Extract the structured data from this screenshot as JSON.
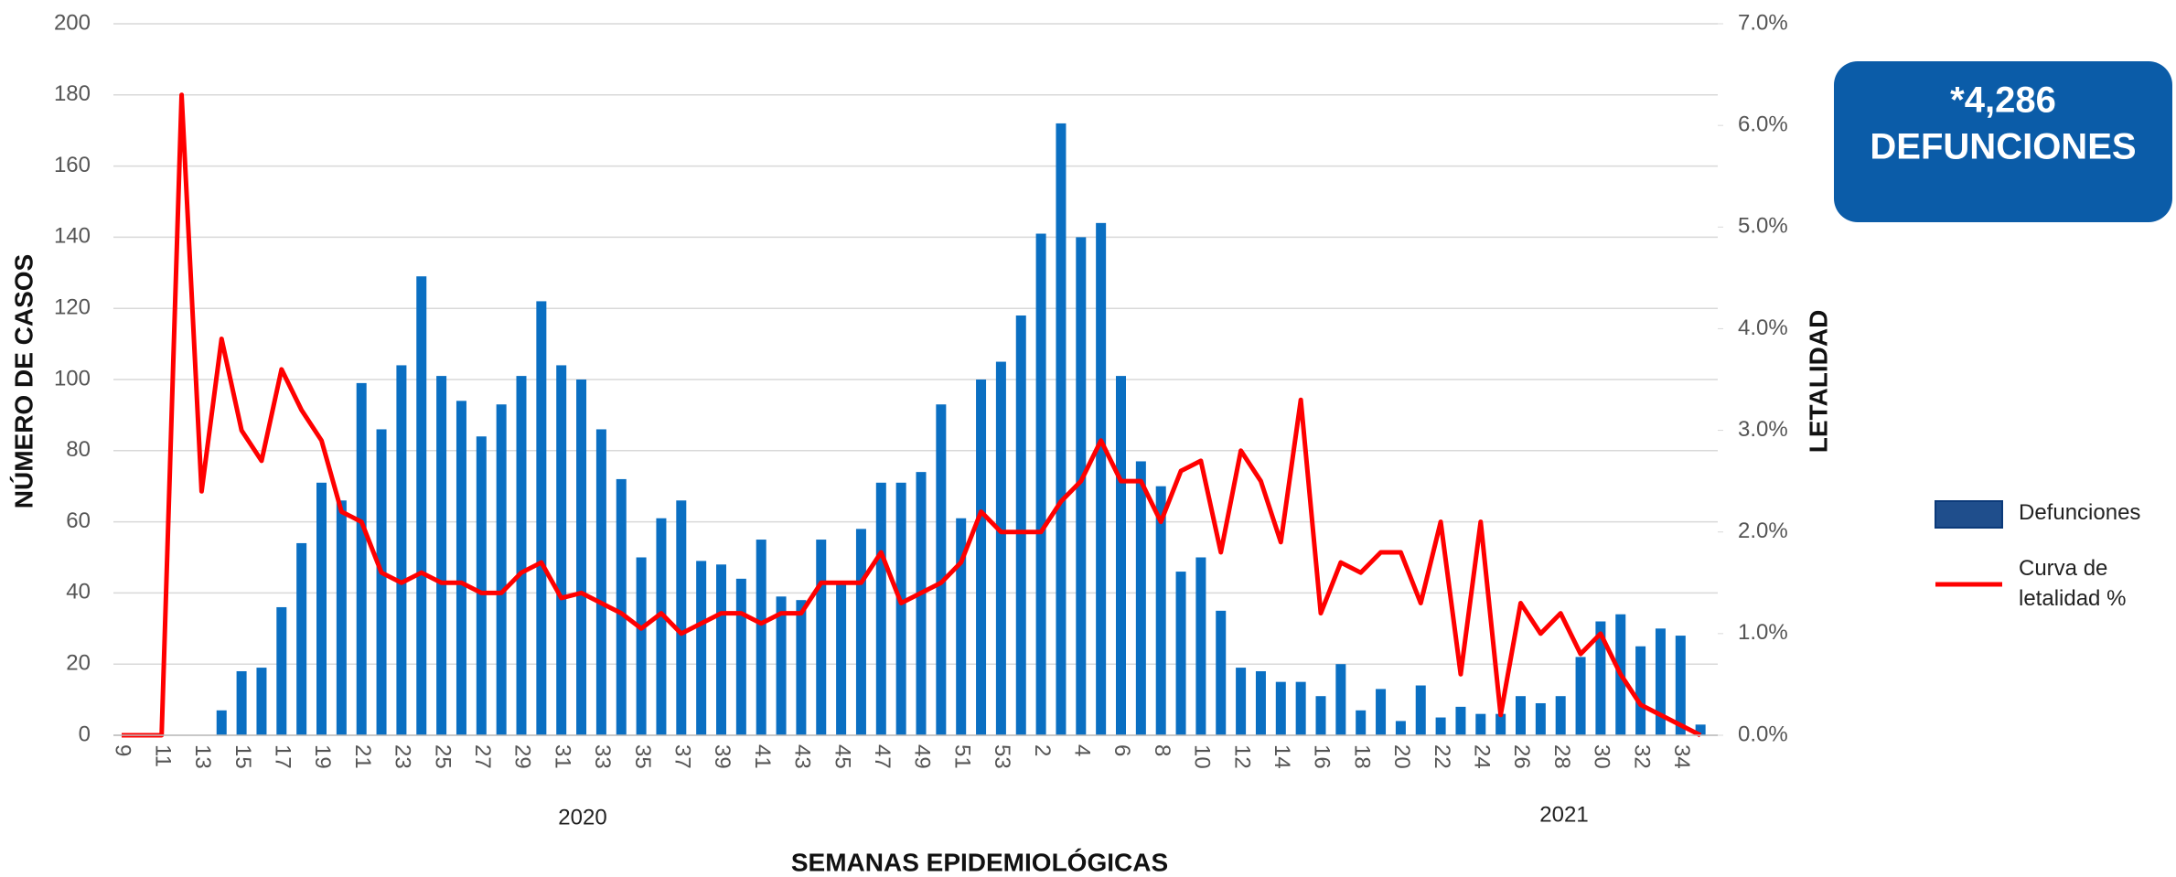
{
  "chart_data": {
    "type": "bar",
    "xlabel": "SEMANAS EPIDEMIOLÓGICAS",
    "ylabel": "NÚMERO DE CASOS",
    "y2label": "LETALIDAD",
    "annotations": [
      "2020",
      "2021"
    ],
    "badge": {
      "count": "*4,286",
      "label": "DEFUNCIONES"
    },
    "categories": [
      "9",
      null,
      "11",
      null,
      "13",
      null,
      "15",
      null,
      "17",
      null,
      "19",
      null,
      "21",
      null,
      "23",
      null,
      "25",
      null,
      "27",
      null,
      "29",
      null,
      "31",
      null,
      "33",
      null,
      "35",
      null,
      "37",
      null,
      "39",
      null,
      "41",
      null,
      "43",
      null,
      "45",
      null,
      "47",
      null,
      "49",
      null,
      "51",
      null,
      "53",
      null,
      "2",
      null,
      "4",
      null,
      "6",
      null,
      "8",
      null,
      "10",
      null,
      "12",
      null,
      "14",
      null,
      "16",
      null,
      "18",
      null,
      "20",
      null,
      "22",
      null,
      "24",
      null,
      "26",
      null,
      "28",
      null,
      "30",
      null,
      "32",
      null,
      "34",
      null
    ],
    "series": [
      {
        "name": "Defunciones",
        "color": "#0a6fc2",
        "values": [
          0,
          0,
          0,
          0,
          0,
          7,
          18,
          19,
          36,
          54,
          71,
          66,
          99,
          86,
          104,
          129,
          101,
          94,
          84,
          93,
          101,
          122,
          104,
          100,
          86,
          72,
          50,
          61,
          66,
          49,
          48,
          44,
          55,
          39,
          38,
          55,
          43,
          58,
          71,
          71,
          74,
          93,
          61,
          100,
          105,
          118,
          141,
          172,
          140,
          144,
          101,
          77,
          70,
          46,
          50,
          35,
          19,
          18,
          15,
          15,
          11,
          20,
          7,
          13,
          4,
          14,
          5,
          8,
          6,
          6,
          11,
          9,
          11,
          22,
          32,
          34,
          25,
          30,
          28,
          3
        ]
      },
      {
        "name": "Curva de letalidad %",
        "color": "#ff0000",
        "type": "line",
        "axis": "y2",
        "values": [
          0,
          0,
          0,
          6.3,
          2.4,
          3.9,
          3.0,
          2.7,
          3.6,
          3.2,
          2.9,
          2.2,
          2.1,
          1.6,
          1.5,
          1.6,
          1.5,
          1.5,
          1.4,
          1.4,
          1.6,
          1.7,
          1.35,
          1.4,
          1.3,
          1.2,
          1.05,
          1.2,
          1.0,
          1.1,
          1.2,
          1.2,
          1.1,
          1.2,
          1.2,
          1.5,
          1.5,
          1.5,
          1.8,
          1.3,
          1.4,
          1.5,
          1.7,
          2.2,
          2.0,
          2.0,
          2.0,
          2.3,
          2.5,
          2.9,
          2.5,
          2.5,
          2.1,
          2.6,
          2.7,
          1.8,
          2.8,
          2.5,
          1.9,
          3.3,
          1.2,
          1.7,
          1.6,
          1.8,
          1.8,
          1.3,
          2.1,
          0.6,
          2.1,
          0.2,
          1.3,
          1.0,
          1.2,
          0.8,
          1.0,
          0.6,
          0.3,
          0.2,
          0.1,
          0.0
        ]
      }
    ],
    "ylim": [
      0,
      200
    ],
    "yticks": [
      0,
      20,
      40,
      60,
      80,
      100,
      120,
      140,
      160,
      180,
      200
    ],
    "y2lim": [
      0,
      7
    ],
    "y2ticks": [
      {
        "value": 0,
        "label": "0.0%"
      },
      {
        "value": 1,
        "label": "1.0%"
      },
      {
        "value": 2,
        "label": "2.0%"
      },
      {
        "value": 3,
        "label": "3.0%"
      },
      {
        "value": 4,
        "label": "4.0%"
      },
      {
        "value": 5,
        "label": "5.0%"
      },
      {
        "value": 6,
        "label": "6.0%"
      },
      {
        "value": 7,
        "label": "7.0%"
      }
    ],
    "grid": true,
    "legend": "right"
  }
}
